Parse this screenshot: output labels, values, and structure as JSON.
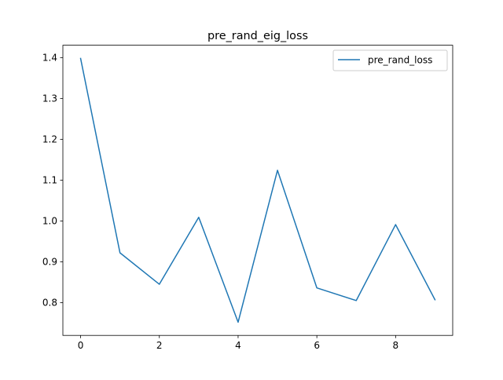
{
  "chart_data": {
    "type": "line",
    "title": "pre_rand_eig_loss",
    "xlabel": "",
    "ylabel": "",
    "x": [
      0,
      1,
      2,
      3,
      4,
      5,
      6,
      7,
      8,
      9
    ],
    "series": [
      {
        "name": "pre_rand_loss",
        "color": "#1f77b4",
        "values": [
          1.398,
          0.922,
          0.845,
          1.009,
          0.752,
          1.124,
          0.836,
          0.805,
          0.991,
          0.807
        ]
      }
    ],
    "xlim": [
      -0.45,
      9.45
    ],
    "ylim": [
      0.7197,
      1.4303
    ],
    "xticks": [
      0,
      2,
      4,
      6,
      8
    ],
    "yticks": [
      0.8,
      0.9,
      1.0,
      1.1,
      1.2,
      1.3,
      1.4
    ],
    "xtick_labels": [
      "0",
      "2",
      "4",
      "6",
      "8"
    ],
    "ytick_labels": [
      "0.8",
      "0.9",
      "1.0",
      "1.1",
      "1.2",
      "1.3",
      "1.4"
    ],
    "grid": false,
    "legend_position": "upper right"
  }
}
